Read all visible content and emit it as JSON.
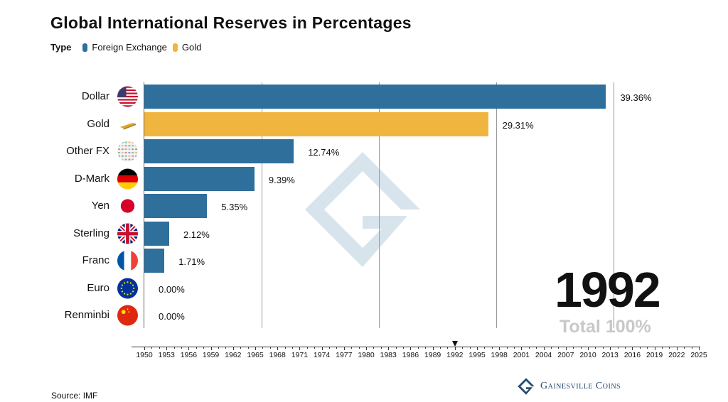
{
  "title": "Global International Reserves in Percentages",
  "legend": {
    "label": "Type",
    "items": [
      {
        "name": "Foreign Exchange",
        "color": "#2f6f9b"
      },
      {
        "name": "Gold",
        "color": "#f0b53e"
      }
    ]
  },
  "chart_data": {
    "type": "bar",
    "orientation": "horizontal",
    "title": "Global International Reserves in Percentages",
    "categories": [
      "Dollar",
      "Gold",
      "Other FX",
      "D-Mark",
      "Yen",
      "Sterling",
      "Franc",
      "Euro",
      "Renminbi"
    ],
    "values": [
      39.36,
      29.31,
      12.74,
      9.39,
      5.35,
      2.12,
      1.71,
      0.0,
      0.0
    ],
    "value_labels": [
      "39.36%",
      "29.31%",
      "12.74%",
      "9.39%",
      "5.35%",
      "2.12%",
      "1.71%",
      "0.00%",
      "0.00%"
    ],
    "types": [
      "Foreign Exchange",
      "Gold",
      "Foreign Exchange",
      "Foreign Exchange",
      "Foreign Exchange",
      "Foreign Exchange",
      "Foreign Exchange",
      "Foreign Exchange",
      "Foreign Exchange"
    ],
    "icons": [
      "us-flag-icon",
      "gold-bar-icon",
      "world-flags-icon",
      "germany-flag-icon",
      "japan-flag-icon",
      "uk-flag-icon",
      "france-flag-icon",
      "eu-flag-icon",
      "china-flag-icon"
    ],
    "x_ticks": [
      "10%",
      "20%",
      "30%",
      "40%"
    ],
    "x_tick_values": [
      10,
      20,
      30,
      40
    ],
    "grid": true,
    "legend_position": "top-left"
  },
  "year": "1992",
  "total": "Total 100%",
  "timeline": {
    "start": 1950,
    "end": 2025,
    "step": 3,
    "current": 1992
  },
  "source": "Source: IMF",
  "brand": "Gainesville Coins"
}
